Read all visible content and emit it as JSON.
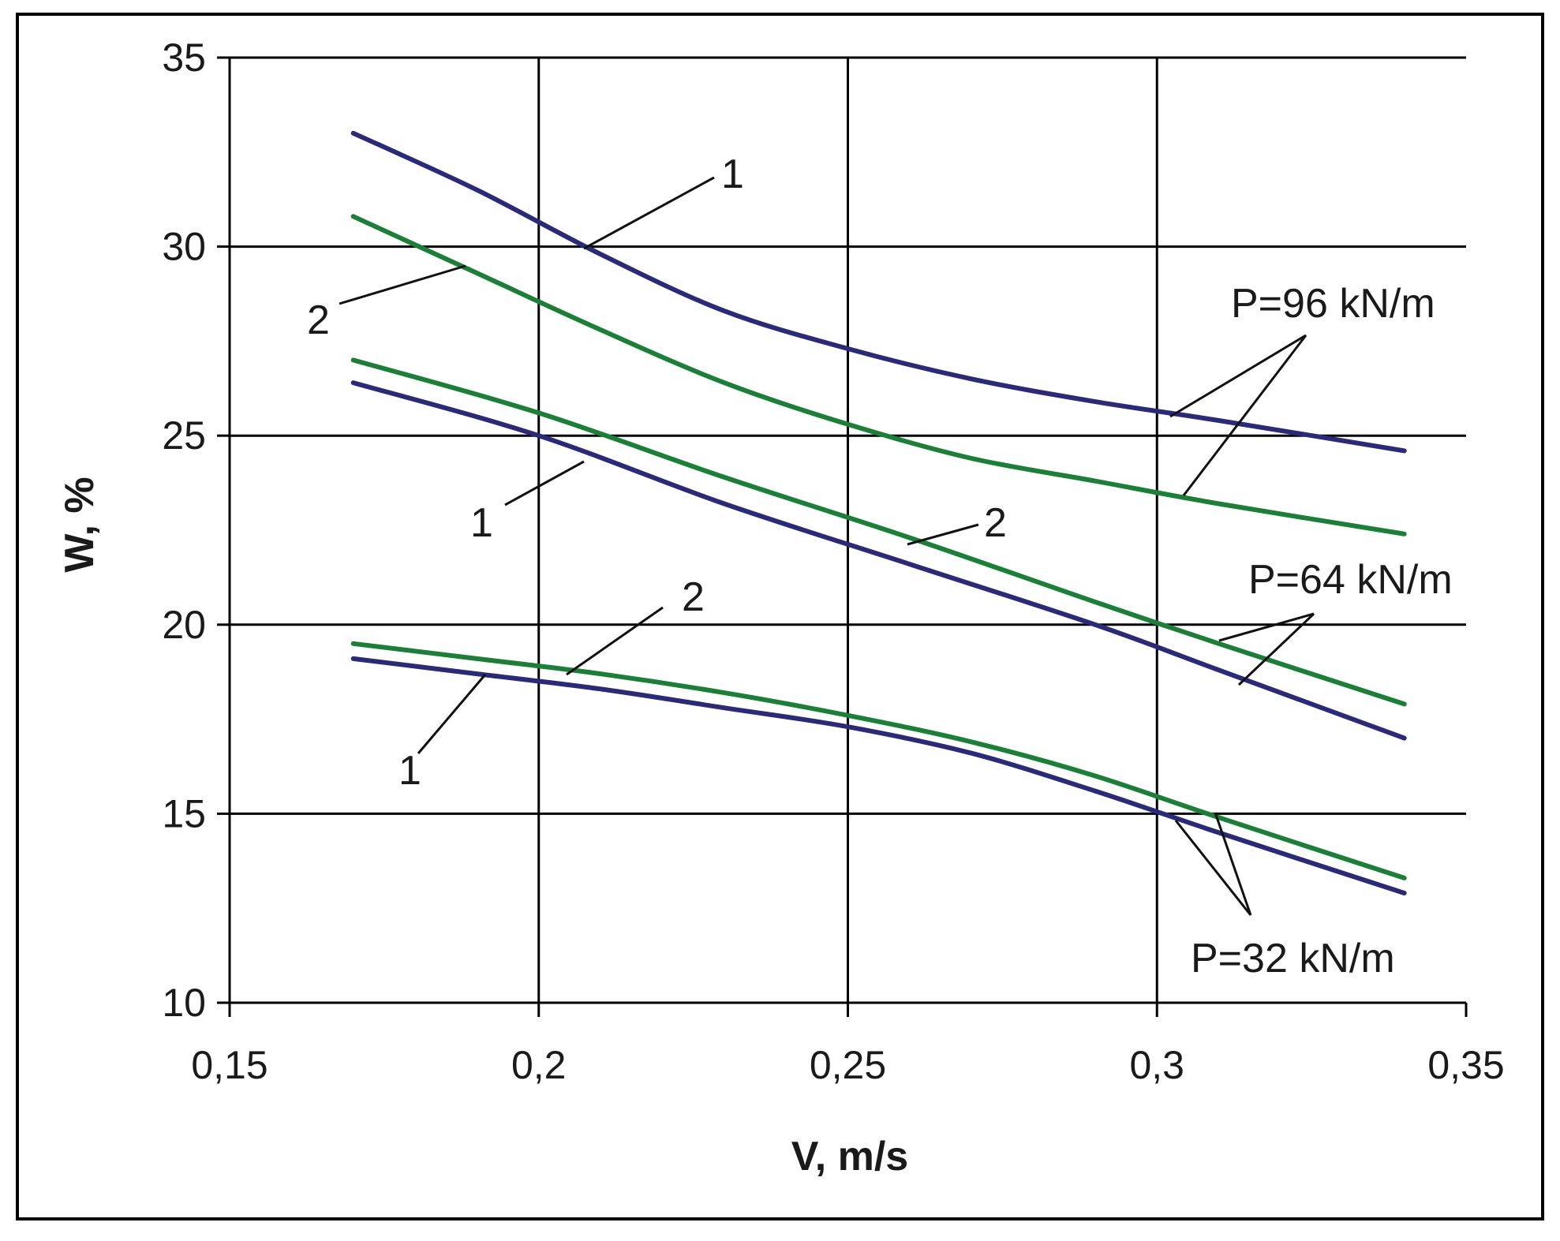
{
  "chart_data": {
    "type": "line",
    "title": "",
    "xlabel": "V, m/s",
    "ylabel": "W, %",
    "xlim": [
      0.15,
      0.35
    ],
    "ylim": [
      10,
      35
    ],
    "grid": true,
    "x_ticks": [
      0.15,
      0.2,
      0.25,
      0.3,
      0.35
    ],
    "x_tick_labels": [
      "0,15",
      "0,2",
      "0,25",
      "0,3",
      "0,35"
    ],
    "y_ticks": [
      10,
      15,
      20,
      25,
      30,
      35
    ],
    "y_tick_labels": [
      "10",
      "15",
      "20",
      "25",
      "30",
      "35"
    ],
    "colors": {
      "curve_1": "#2b2a7a",
      "curve_2": "#1a8038",
      "grid": "#000000"
    },
    "series": [
      {
        "name": "P=96 kN/m, curve 1",
        "color": "curve_1",
        "x": [
          0.17,
          0.19,
          0.21,
          0.23,
          0.25,
          0.27,
          0.29,
          0.31,
          0.34
        ],
        "y": [
          33.0,
          31.5,
          29.8,
          28.3,
          27.3,
          26.5,
          25.9,
          25.4,
          24.6
        ]
      },
      {
        "name": "P=96 kN/m, curve 2",
        "color": "curve_2",
        "x": [
          0.17,
          0.19,
          0.21,
          0.23,
          0.25,
          0.27,
          0.29,
          0.31,
          0.34
        ],
        "y": [
          30.8,
          29.3,
          27.8,
          26.4,
          25.3,
          24.4,
          23.8,
          23.2,
          22.4
        ]
      },
      {
        "name": "P=64 kN/m, curve 1",
        "color": "curve_1",
        "x": [
          0.17,
          0.2,
          0.23,
          0.26,
          0.29,
          0.31,
          0.34
        ],
        "y": [
          26.4,
          25.0,
          23.2,
          21.6,
          20.0,
          18.8,
          17.0
        ]
      },
      {
        "name": "P=64 kN/m, curve 2",
        "color": "curve_2",
        "x": [
          0.17,
          0.2,
          0.23,
          0.26,
          0.29,
          0.31,
          0.34
        ],
        "y": [
          27.0,
          25.6,
          23.9,
          22.3,
          20.6,
          19.5,
          17.9
        ]
      },
      {
        "name": "P=32 kN/m, curve 1",
        "color": "curve_1",
        "x": [
          0.17,
          0.19,
          0.21,
          0.23,
          0.25,
          0.27,
          0.29,
          0.31,
          0.34
        ],
        "y": [
          19.1,
          18.7,
          18.3,
          17.8,
          17.3,
          16.6,
          15.6,
          14.5,
          12.9
        ]
      },
      {
        "name": "P=32 kN/m, curve 2",
        "color": "curve_2",
        "x": [
          0.17,
          0.19,
          0.21,
          0.23,
          0.25,
          0.27,
          0.29,
          0.31,
          0.34
        ],
        "y": [
          19.5,
          19.1,
          18.7,
          18.2,
          17.6,
          16.9,
          16.0,
          14.9,
          13.3
        ]
      }
    ],
    "annotations": [
      {
        "id": "label-96",
        "text": "P=96 kN/m"
      },
      {
        "id": "label-64",
        "text": "P=64 kN/m"
      },
      {
        "id": "label-32",
        "text": "P=32 kN/m"
      },
      {
        "id": "num-96-1",
        "text": "1"
      },
      {
        "id": "num-96-2",
        "text": "2"
      },
      {
        "id": "num-64-1",
        "text": "1"
      },
      {
        "id": "num-64-2",
        "text": "2"
      },
      {
        "id": "num-32-1",
        "text": "1"
      },
      {
        "id": "num-32-2",
        "text": "2"
      }
    ]
  }
}
